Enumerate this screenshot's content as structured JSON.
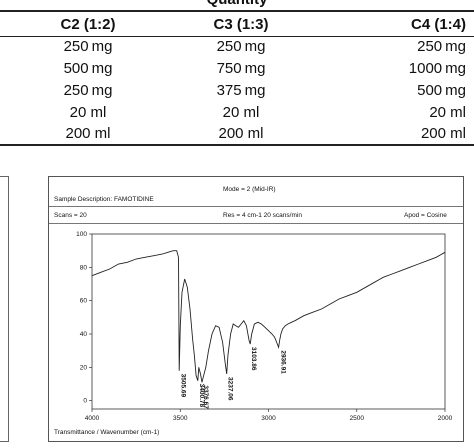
{
  "table": {
    "title": "Quantity",
    "columns": [
      "C2 (1:2)",
      "C3 (1:3)",
      "C4 (1:4)"
    ],
    "rows": [
      [
        "250 mg",
        "250 mg",
        "250 mg"
      ],
      [
        "500 mg",
        "750 mg",
        "1000 mg"
      ],
      [
        "250 mg",
        "375 mg",
        "500 mg"
      ],
      [
        "20 ml",
        "20 ml",
        "20 ml"
      ],
      [
        "200 ml",
        "200 ml",
        "200 ml"
      ]
    ]
  },
  "ir": {
    "mode": "Mode = 2 (Mid-IR)",
    "sample": "Sample Description: FAMOTIDINE",
    "scans": "Scans = 20",
    "res": "Res = 4 cm-1   20 scans/min",
    "apod": "Apod = Cosine",
    "xlabel": "Transmittance / Wavenumber (cm-1)"
  },
  "chart_data": {
    "type": "line",
    "title": "",
    "xlabel": "Transmittance / Wavenumber (cm-1)",
    "ylabel": "",
    "xlim": [
      4000,
      2000
    ],
    "ylim": [
      -5,
      100
    ],
    "x_ticks": [
      4000,
      3500,
      3000,
      2500,
      2000
    ],
    "y_ticks": [
      0,
      20,
      40,
      60,
      80,
      100
    ],
    "series": [
      {
        "color": "#222222",
        "x": [
          4000,
          3950,
          3900,
          3850,
          3800,
          3750,
          3700,
          3650,
          3600,
          3570,
          3540,
          3520,
          3510,
          3505.69,
          3500,
          3490,
          3475,
          3460,
          3445,
          3430,
          3420,
          3410,
          3400.78,
          3395,
          3385,
          3376.67,
          3370,
          3355,
          3340,
          3320,
          3300,
          3280,
          3260,
          3245,
          3237.06,
          3230,
          3215,
          3200,
          3185,
          3170,
          3155,
          3140,
          3125,
          3110,
          3103.86,
          3095,
          3080,
          3060,
          3040,
          3020,
          3000,
          2980,
          2965,
          2950,
          2943,
          2936.91,
          2930,
          2920,
          2905,
          2890,
          2870,
          2850,
          2800,
          2750,
          2700,
          2650,
          2600,
          2550,
          2500,
          2450,
          2400,
          2350,
          2300,
          2250,
          2200,
          2150,
          2100,
          2050,
          2000
        ],
        "y": [
          75,
          77,
          79,
          82,
          83,
          85,
          86,
          87,
          88,
          89,
          90,
          90,
          86,
          18,
          45,
          65,
          73,
          68,
          55,
          37,
          27,
          15,
          12,
          20,
          16,
          11,
          14,
          20,
          30,
          40,
          45,
          44,
          35,
          22,
          16,
          27,
          40,
          46,
          45,
          44,
          46,
          48,
          45,
          36,
          34,
          40,
          46,
          47,
          46,
          44,
          42,
          40,
          38,
          34,
          32,
          36,
          40,
          43,
          45,
          46,
          47,
          48,
          51,
          53,
          55,
          58,
          61,
          63,
          65,
          68,
          71,
          74,
          76,
          78,
          80,
          82,
          84,
          86,
          89
        ]
      }
    ],
    "peak_labels": [
      "3505.69",
      "3400.78",
      "3376.67",
      "3237.06",
      "3103.86",
      "2936.91"
    ],
    "peak_x": [
      3505.69,
      3400.78,
      3376.67,
      3237.06,
      3103.86,
      2936.91
    ],
    "peak_y": [
      18,
      12,
      11,
      16,
      34,
      32
    ],
    "grid": false
  }
}
